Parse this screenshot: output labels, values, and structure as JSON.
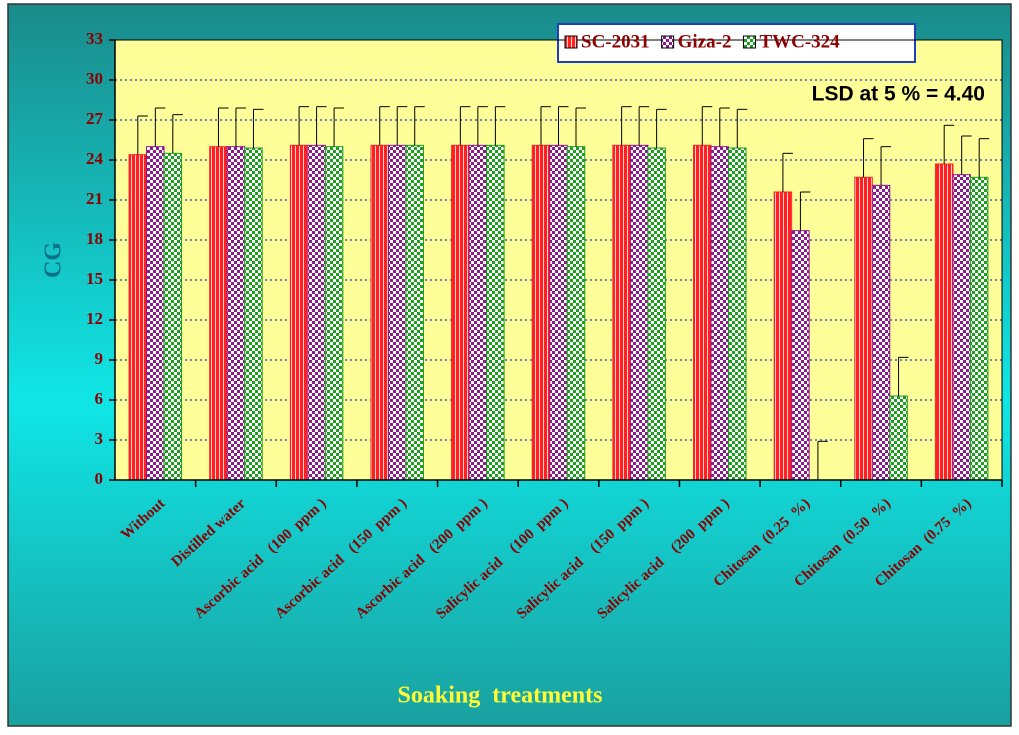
{
  "chart_data": {
    "type": "bar",
    "y_label": "CG",
    "x_label": "Soaking  treatments",
    "annotation": "LSD at 5 % = 4.40",
    "categories": [
      "Without",
      "Distilled water",
      "Ascorbic acid   (100  ppm )",
      "Ascorbic acid   (150  ppm )",
      "Ascorbic acid   (200  ppm )",
      "Salicylic acid    (100  ppm )",
      "Salicylic acid    (150  ppm )",
      "Salicylic acid    (200  ppm )",
      "Chitosan  (0.25  %)",
      "Chitosan  (0.50  %)",
      "Chitosan  (0.75  %)"
    ],
    "series": [
      {
        "name": "SC-2031",
        "color": "#ff2020",
        "values": [
          24.4,
          25.0,
          25.1,
          25.1,
          25.1,
          25.1,
          25.1,
          25.1,
          21.6,
          22.7,
          23.7
        ],
        "errors": [
          2.9,
          2.9,
          2.9,
          2.9,
          2.9,
          2.9,
          2.9,
          2.9,
          2.9,
          2.9,
          2.9
        ]
      },
      {
        "name": "Giza-2",
        "color": "#8b1a8b",
        "values": [
          25.0,
          25.0,
          25.1,
          25.1,
          25.1,
          25.1,
          25.1,
          25.0,
          18.7,
          22.1,
          22.9
        ],
        "errors": [
          2.9,
          2.9,
          2.9,
          2.9,
          2.9,
          2.9,
          2.9,
          2.9,
          2.9,
          2.9,
          2.9
        ]
      },
      {
        "name": "TWC-324",
        "color": "#1e9e1e",
        "values": [
          24.5,
          24.9,
          25.0,
          25.1,
          25.1,
          25.0,
          24.9,
          24.9,
          0,
          6.3,
          22.7
        ],
        "errors": [
          2.9,
          2.9,
          2.9,
          2.9,
          2.9,
          2.9,
          2.9,
          2.9,
          2.9,
          2.9,
          2.9
        ]
      }
    ],
    "ylim": [
      0,
      33
    ],
    "yticks": [
      0,
      3,
      6,
      9,
      12,
      15,
      18,
      21,
      24,
      27,
      30,
      33
    ],
    "grid": true,
    "legend_position": "top"
  }
}
